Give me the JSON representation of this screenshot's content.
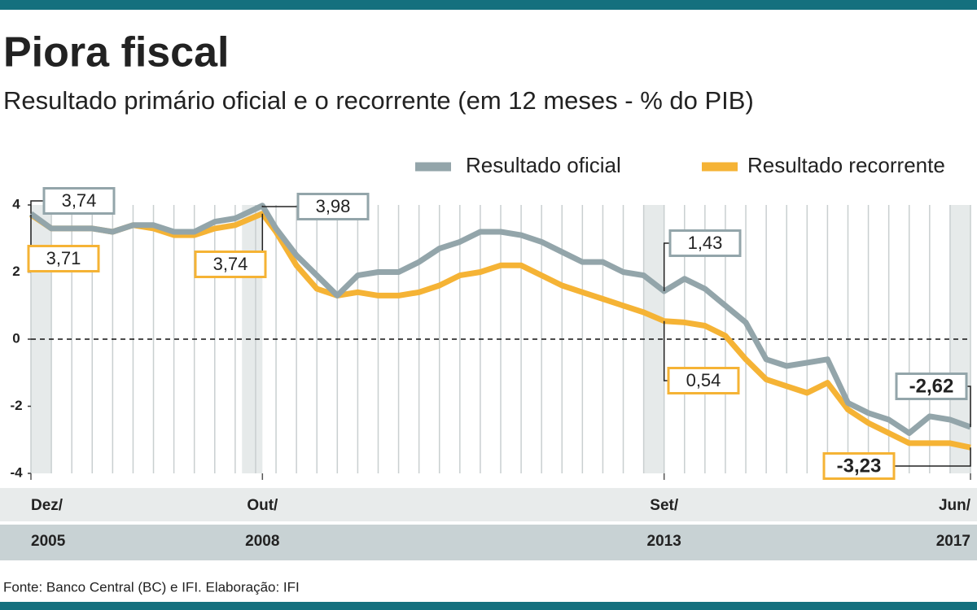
{
  "chart_data": {
    "type": "line",
    "title": "Piora fiscal",
    "subtitle": "Resultado primário oficial e o recorrente (em 12 meses - % do PIB)",
    "source": "Fonte: Banco Central (BC) e IFI. Elaboração: IFI",
    "x": [
      "2005-12",
      "2006-03",
      "2006-06",
      "2006-09",
      "2006-12",
      "2007-03",
      "2007-06",
      "2007-09",
      "2007-12",
      "2008-03",
      "2008-06",
      "2008-10",
      "2008-12",
      "2009-03",
      "2009-06",
      "2009-09",
      "2009-12",
      "2010-03",
      "2010-06",
      "2010-09",
      "2010-12",
      "2011-03",
      "2011-06",
      "2011-09",
      "2011-12",
      "2012-03",
      "2012-06",
      "2012-09",
      "2012-12",
      "2013-03",
      "2013-06",
      "2013-09",
      "2013-12",
      "2014-03",
      "2014-06",
      "2014-09",
      "2014-12",
      "2015-03",
      "2015-06",
      "2015-09",
      "2015-12",
      "2016-03",
      "2016-06",
      "2016-09",
      "2016-12",
      "2017-03",
      "2017-06"
    ],
    "series": [
      {
        "name": "Resultado oficial",
        "color": "#93a5aa",
        "values": [
          3.74,
          3.3,
          3.3,
          3.3,
          3.2,
          3.4,
          3.4,
          3.2,
          3.2,
          3.5,
          3.6,
          3.98,
          3.3,
          2.5,
          1.9,
          1.3,
          1.9,
          2.0,
          2.0,
          2.3,
          2.7,
          2.9,
          3.2,
          3.2,
          3.1,
          2.9,
          2.6,
          2.3,
          2.3,
          2.0,
          1.9,
          1.43,
          1.8,
          1.5,
          1.0,
          0.5,
          -0.6,
          -0.8,
          -0.7,
          -0.6,
          -1.9,
          -2.2,
          -2.4,
          -2.8,
          -2.3,
          -2.4,
          -2.62
        ]
      },
      {
        "name": "Resultado recorrente",
        "color": "#f5b335",
        "values": [
          3.71,
          3.3,
          3.3,
          3.3,
          3.2,
          3.4,
          3.3,
          3.1,
          3.1,
          3.3,
          3.4,
          3.74,
          3.2,
          2.2,
          1.5,
          1.3,
          1.4,
          1.3,
          1.3,
          1.4,
          1.6,
          1.9,
          2.0,
          2.2,
          2.2,
          1.9,
          1.6,
          1.4,
          1.2,
          1.0,
          0.8,
          0.54,
          0.5,
          0.4,
          0.1,
          -0.6,
          -1.2,
          -1.4,
          -1.6,
          -1.3,
          -2.1,
          -2.5,
          -2.8,
          -3.1,
          -3.1,
          -3.1,
          -3.23
        ]
      }
    ],
    "annotations": [
      {
        "x": "2005-12",
        "value": 3.74,
        "label": "3,74",
        "color": "#93a5aa"
      },
      {
        "x": "2005-12",
        "value": 3.71,
        "label": "3,71",
        "color": "#f5b335"
      },
      {
        "x": "2008-10",
        "value": 3.98,
        "label": "3,98",
        "color": "#93a5aa"
      },
      {
        "x": "2008-10",
        "value": 3.74,
        "label": "3,74",
        "color": "#f5b335"
      },
      {
        "x": "2013-09",
        "value": 1.43,
        "label": "1,43",
        "color": "#93a5aa"
      },
      {
        "x": "2013-09",
        "value": 0.54,
        "label": "0,54",
        "color": "#f5b335"
      },
      {
        "x": "2017-06",
        "value": -2.62,
        "label": "-2,62",
        "color": "#93a5aa"
      },
      {
        "x": "2017-06",
        "value": -3.23,
        "label": "-3,23",
        "color": "#f5b335"
      }
    ],
    "xlim": [
      "2005-12",
      "2017-06"
    ],
    "xticks": [
      {
        "value": "2005-12",
        "month": "Dez/",
        "year": "2005"
      },
      {
        "value": "2008-10",
        "month": "Out/",
        "year": "2008"
      },
      {
        "value": "2013-09",
        "month": "Set/",
        "year": "2013"
      },
      {
        "value": "2017-06",
        "month": "Jun/",
        "year": "2017"
      }
    ],
    "ylim": [
      -4,
      4
    ],
    "yticks": [
      -4,
      -2,
      0,
      2,
      4
    ]
  }
}
